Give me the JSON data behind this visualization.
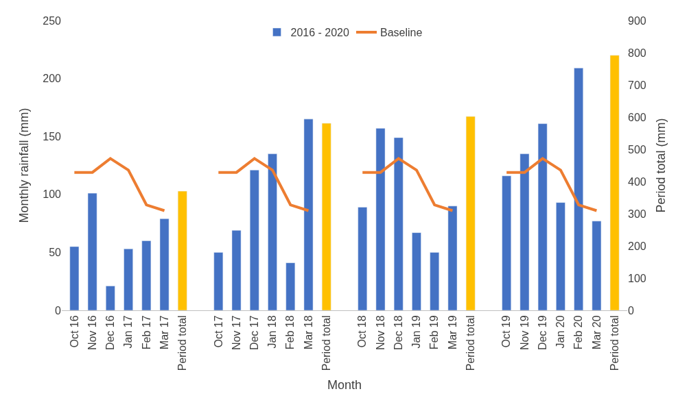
{
  "chart_data": {
    "type": "bar",
    "xlabel": "Month",
    "ylabel": "Monthly rainfall (mm)",
    "y2label": "Period total (mm)",
    "categories": [
      "Oct 16",
      "Nov 16",
      "Dec 16",
      "Jan 17",
      "Feb 17",
      "Mar 17",
      "Period total",
      null,
      "Oct 17",
      "Nov 17",
      "Dec 17",
      "Jan 18",
      "Feb 18",
      "Mar 18",
      "Period total",
      null,
      "Oct 18",
      "Nov 18",
      "Dec 18",
      "Jan 19",
      "Feb 19",
      "Mar 19",
      "Period total",
      null,
      "Oct 19",
      "Nov 19",
      "Dec 19",
      "Jan 20",
      "Feb 20",
      "Mar 20",
      "Period total"
    ],
    "series": [
      {
        "name": "2016 - 2020",
        "color": "#4472c4",
        "values": [
          55,
          101,
          21,
          53,
          60,
          79,
          null,
          null,
          50,
          69,
          121,
          135,
          41,
          165,
          null,
          null,
          89,
          157,
          149,
          67,
          50,
          90,
          null,
          null,
          116,
          135,
          161,
          93,
          209,
          77,
          null
        ]
      },
      {
        "axis": "y2",
        "color": "#ffc000",
        "values": [
          null,
          null,
          null,
          null,
          null,
          null,
          370,
          null,
          null,
          null,
          null,
          null,
          null,
          null,
          581,
          null,
          null,
          null,
          null,
          null,
          null,
          null,
          602,
          null,
          null,
          null,
          null,
          null,
          null,
          null,
          792
        ]
      },
      {
        "name": "Baseline",
        "type": "line",
        "color": "#ed7d31",
        "values": [
          119,
          119,
          131,
          121,
          91,
          86,
          null,
          null,
          119,
          119,
          131,
          121,
          91,
          86,
          null,
          null,
          119,
          119,
          131,
          121,
          91,
          86,
          null,
          null,
          119,
          119,
          131,
          121,
          91,
          86,
          null
        ]
      }
    ],
    "ylim": [
      0,
      250
    ],
    "yticks": [
      0,
      50,
      100,
      150,
      200,
      250
    ],
    "y2lim": [
      0,
      900
    ],
    "y2ticks": [
      0,
      100,
      200,
      300,
      400,
      500,
      600,
      700,
      800,
      900
    ],
    "legend": "top"
  }
}
